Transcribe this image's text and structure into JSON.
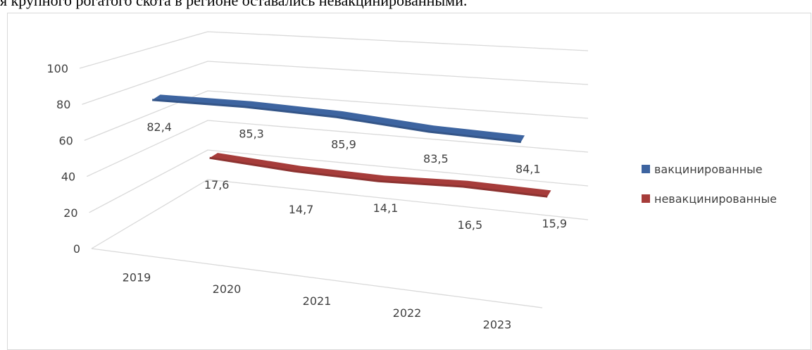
{
  "text_above": "я крупного рогатого скота в регионе оставались невакцинированными.",
  "chart_data": {
    "type": "line3d",
    "categories": [
      "2019",
      "2020",
      "2021",
      "2022",
      "2023"
    ],
    "series": [
      {
        "name": "вакцинированные",
        "color": "#3d64a0",
        "values": [
          82.4,
          85.3,
          85.9,
          83.5,
          84.1
        ],
        "value_labels": [
          "82,4",
          "85,3",
          "85,9",
          "83,5",
          "84,1"
        ]
      },
      {
        "name": "невакцинированные",
        "color": "#a63c3a",
        "values": [
          17.6,
          14.7,
          14.1,
          16.5,
          15.9
        ],
        "value_labels": [
          "17,6",
          "14,7",
          "14,1",
          "16,5",
          "15,9"
        ]
      }
    ],
    "ylim": [
      0,
      100
    ],
    "yticks": [
      0,
      20,
      40,
      60,
      80,
      100
    ],
    "grid": true,
    "legend": "right"
  }
}
